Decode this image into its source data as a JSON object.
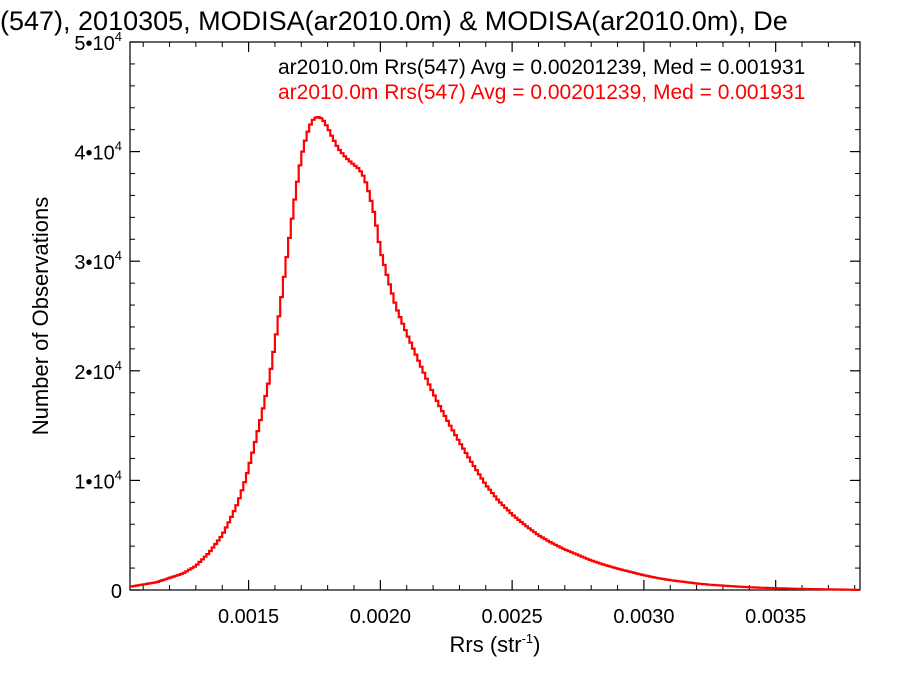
{
  "chart_data": {
    "type": "line",
    "title": "(547), 2010305, MODISA(ar2010.0m) & MODISA(ar2010.0m), De",
    "xlabel": "Rrs (str",
    "xlabel_sup": "-1",
    "xlabel_close": ")",
    "ylabel": "Number of Observations",
    "xlim": [
      0.00105,
      0.00382
    ],
    "ylim": [
      0,
      50000
    ],
    "x_ticks": [
      {
        "value": 0.0015,
        "label": "0.0015"
      },
      {
        "value": 0.002,
        "label": "0.0020"
      },
      {
        "value": 0.0025,
        "label": "0.0025"
      },
      {
        "value": 0.003,
        "label": "0.0030"
      },
      {
        "value": 0.0035,
        "label": "0.0035"
      }
    ],
    "y_ticks": [
      {
        "value": 0,
        "base": "0",
        "exp": ""
      },
      {
        "value": 10000,
        "base": "1•10",
        "exp": "4"
      },
      {
        "value": 20000,
        "base": "2•10",
        "exp": "4"
      },
      {
        "value": 30000,
        "base": "3•10",
        "exp": "4"
      },
      {
        "value": 40000,
        "base": "4•10",
        "exp": "4"
      },
      {
        "value": 50000,
        "base": "5•10",
        "exp": "4"
      }
    ],
    "grid": false,
    "legend_position": "top-right",
    "legend": [
      {
        "text": "ar2010.0m Rrs(547) Avg = 0.00201239, Med = 0.001931",
        "color": "#000000"
      },
      {
        "text": "ar2010.0m Rrs(547) Avg = 0.00201239, Med = 0.001931",
        "color": "#ff0000"
      }
    ],
    "series": [
      {
        "color": "#ff0000",
        "style": "step",
        "x": [
          0.00105,
          0.0011,
          0.00115,
          0.0012,
          0.00125,
          0.0013,
          0.00135,
          0.0014,
          0.00143,
          0.00146,
          0.00149,
          0.00152,
          0.00155,
          0.00158,
          0.0016,
          0.00162,
          0.00164,
          0.00166,
          0.00168,
          0.0017,
          0.00172,
          0.00174,
          0.00176,
          0.00178,
          0.0018,
          0.00182,
          0.00184,
          0.00186,
          0.00188,
          0.0019,
          0.00192,
          0.00194,
          0.00196,
          0.00198,
          0.002,
          0.00203,
          0.00206,
          0.0021,
          0.00214,
          0.00218,
          0.00222,
          0.00226,
          0.0023,
          0.00235,
          0.0024,
          0.00245,
          0.0025,
          0.00255,
          0.0026,
          0.00265,
          0.0027,
          0.00275,
          0.0028,
          0.00285,
          0.0029,
          0.00295,
          0.003,
          0.00305,
          0.0031,
          0.00315,
          0.0032,
          0.00325,
          0.0033,
          0.00335,
          0.0034,
          0.00345,
          0.0035,
          0.00355,
          0.0036,
          0.00365,
          0.0037,
          0.00375,
          0.0038,
          0.00382
        ],
        "y": [
          300,
          500,
          700,
          1100,
          1500,
          2200,
          3400,
          5000,
          6400,
          8000,
          10200,
          13000,
          16000,
          19400,
          22500,
          25800,
          29500,
          33000,
          36500,
          39500,
          41500,
          42800,
          43200,
          43000,
          42200,
          41200,
          40300,
          39700,
          39200,
          38800,
          38400,
          37600,
          36000,
          34000,
          31000,
          28300,
          25800,
          23400,
          21200,
          19000,
          17000,
          15200,
          13500,
          11500,
          9600,
          8100,
          6900,
          5900,
          5000,
          4300,
          3700,
          3200,
          2700,
          2300,
          1950,
          1650,
          1350,
          1100,
          900,
          750,
          600,
          480,
          400,
          320,
          250,
          200,
          170,
          130,
          100,
          80,
          60,
          40,
          20,
          10
        ]
      }
    ]
  }
}
